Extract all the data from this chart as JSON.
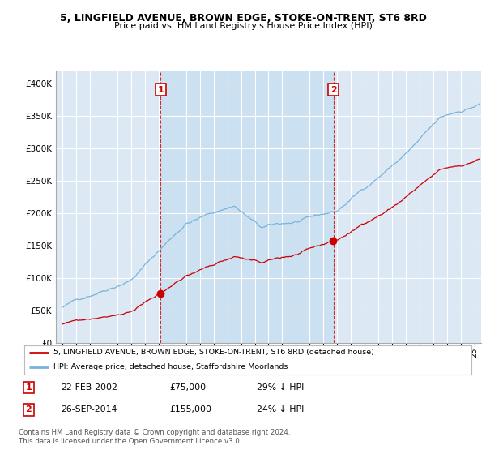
{
  "title": "5, LINGFIELD AVENUE, BROWN EDGE, STOKE-ON-TRENT, ST6 8RD",
  "subtitle": "Price paid vs. HM Land Registry's House Price Index (HPI)",
  "legend_line1": "5, LINGFIELD AVENUE, BROWN EDGE, STOKE-ON-TRENT, ST6 8RD (detached house)",
  "legend_line2": "HPI: Average price, detached house, Staffordshire Moorlands",
  "footnote": "Contains HM Land Registry data © Crown copyright and database right 2024.\nThis data is licensed under the Open Government Licence v3.0.",
  "table": [
    {
      "num": "1",
      "date": "22-FEB-2002",
      "price": "£75,000",
      "hpi": "29% ↓ HPI"
    },
    {
      "num": "2",
      "date": "26-SEP-2014",
      "price": "£155,000",
      "hpi": "24% ↓ HPI"
    }
  ],
  "sale1_date_num": 2002.13,
  "sale1_price": 75000,
  "sale2_date_num": 2014.74,
  "sale2_price": 155000,
  "hpi_color": "#7ab4d8",
  "hpi_fill_color": "#c5ddf0",
  "property_color": "#cc0000",
  "marker_color": "#cc0000",
  "shade_color": "#c8dff0",
  "background_color": "#dce9f5",
  "grid_color": "#ffffff",
  "ylim": [
    0,
    420000
  ],
  "xlim_start": 1994.5,
  "xlim_end": 2025.5
}
